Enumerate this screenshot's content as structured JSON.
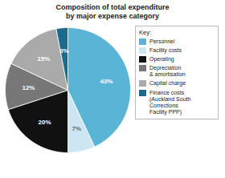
{
  "chart_data": {
    "type": "pie",
    "title": "Composition of total expenditure\nby major expense category",
    "categories": [
      "Personnel",
      "Facility costs",
      "Operating",
      "Depreciation\n& amortisation",
      "Capital charge",
      "Finance costs\n(Auckland South\nCorrections\nFacility PPP)"
    ],
    "values": [
      43,
      7,
      20,
      12,
      15,
      3
    ],
    "value_labels": [
      "43%",
      "7%",
      "20%",
      "12%",
      "15%",
      "3%"
    ],
    "colors": [
      "#5ab4d6",
      "#cce6f4",
      "#111111",
      "#777777",
      "#aaaaaa",
      "#1c6b8a"
    ],
    "data_labels": true,
    "legend": "right",
    "legend_title": "Key:"
  }
}
